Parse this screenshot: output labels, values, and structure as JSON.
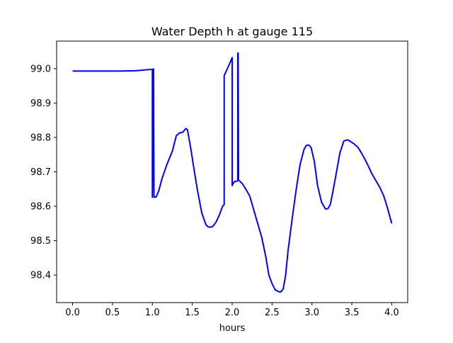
{
  "chart_data": {
    "type": "line",
    "title": "Water Depth h at gauge 115",
    "xlabel": "hours",
    "ylabel": "",
    "xlim": [
      -0.2,
      4.2
    ],
    "ylim": [
      98.32,
      99.08
    ],
    "xticks": [
      0.0,
      0.5,
      1.0,
      1.5,
      2.0,
      2.5,
      3.0,
      3.5,
      4.0
    ],
    "xtick_labels": [
      "0.0",
      "0.5",
      "1.0",
      "1.5",
      "2.0",
      "2.5",
      "3.0",
      "3.5",
      "4.0"
    ],
    "yticks": [
      98.4,
      98.5,
      98.6,
      98.7,
      98.8,
      98.9,
      99.0
    ],
    "ytick_labels": [
      "98.4",
      "98.5",
      "98.6",
      "98.7",
      "98.8",
      "98.9",
      "99.0"
    ],
    "grid": false,
    "series": [
      {
        "color": "#0000ff",
        "x": [
          0.0,
          0.2,
          0.4,
          0.6,
          0.8,
          0.95,
          1.0,
          1.0,
          1.01,
          1.015,
          1.02,
          1.03,
          1.05,
          1.08,
          1.12,
          1.18,
          1.25,
          1.3,
          1.34,
          1.38,
          1.42,
          1.44,
          1.48,
          1.52,
          1.57,
          1.62,
          1.67,
          1.7,
          1.73,
          1.76,
          1.8,
          1.84,
          1.88,
          1.9,
          1.9,
          1.96,
          2.0,
          2.0,
          2.01,
          2.03,
          2.06,
          2.07,
          2.07,
          2.075,
          2.08,
          2.1,
          2.13,
          2.17,
          2.22,
          2.27,
          2.32,
          2.37,
          2.42,
          2.46,
          2.5,
          2.54,
          2.58,
          2.61,
          2.64,
          2.67,
          2.7,
          2.75,
          2.8,
          2.85,
          2.9,
          2.93,
          2.96,
          2.99,
          3.03,
          3.07,
          3.12,
          3.17,
          3.2,
          3.23,
          3.26,
          3.3,
          3.35,
          3.4,
          3.45,
          3.49,
          3.53,
          3.58,
          3.62,
          3.66,
          3.7,
          3.75,
          3.8,
          3.85,
          3.9,
          3.94,
          3.97,
          4.0
        ],
        "y": [
          98.993,
          98.993,
          98.993,
          98.993,
          98.994,
          98.997,
          98.998,
          98.626,
          98.999,
          98.999,
          98.626,
          98.626,
          98.628,
          98.645,
          98.68,
          98.72,
          98.76,
          98.805,
          98.813,
          98.815,
          98.826,
          98.822,
          98.77,
          98.71,
          98.64,
          98.58,
          98.547,
          98.54,
          98.539,
          98.542,
          98.555,
          98.575,
          98.6,
          98.605,
          98.98,
          99.01,
          99.032,
          98.66,
          98.665,
          98.672,
          98.673,
          98.675,
          99.045,
          99.045,
          98.675,
          98.672,
          98.665,
          98.65,
          98.63,
          98.59,
          98.55,
          98.51,
          98.455,
          98.4,
          98.375,
          98.357,
          98.352,
          98.351,
          98.36,
          98.4,
          98.47,
          98.56,
          98.645,
          98.72,
          98.765,
          98.777,
          98.778,
          98.77,
          98.73,
          98.66,
          98.612,
          98.592,
          98.593,
          98.605,
          98.64,
          98.69,
          98.755,
          98.79,
          98.793,
          98.787,
          98.781,
          98.77,
          98.755,
          98.738,
          98.72,
          98.695,
          98.675,
          98.655,
          98.63,
          98.6,
          98.575,
          98.55
        ]
      }
    ]
  }
}
